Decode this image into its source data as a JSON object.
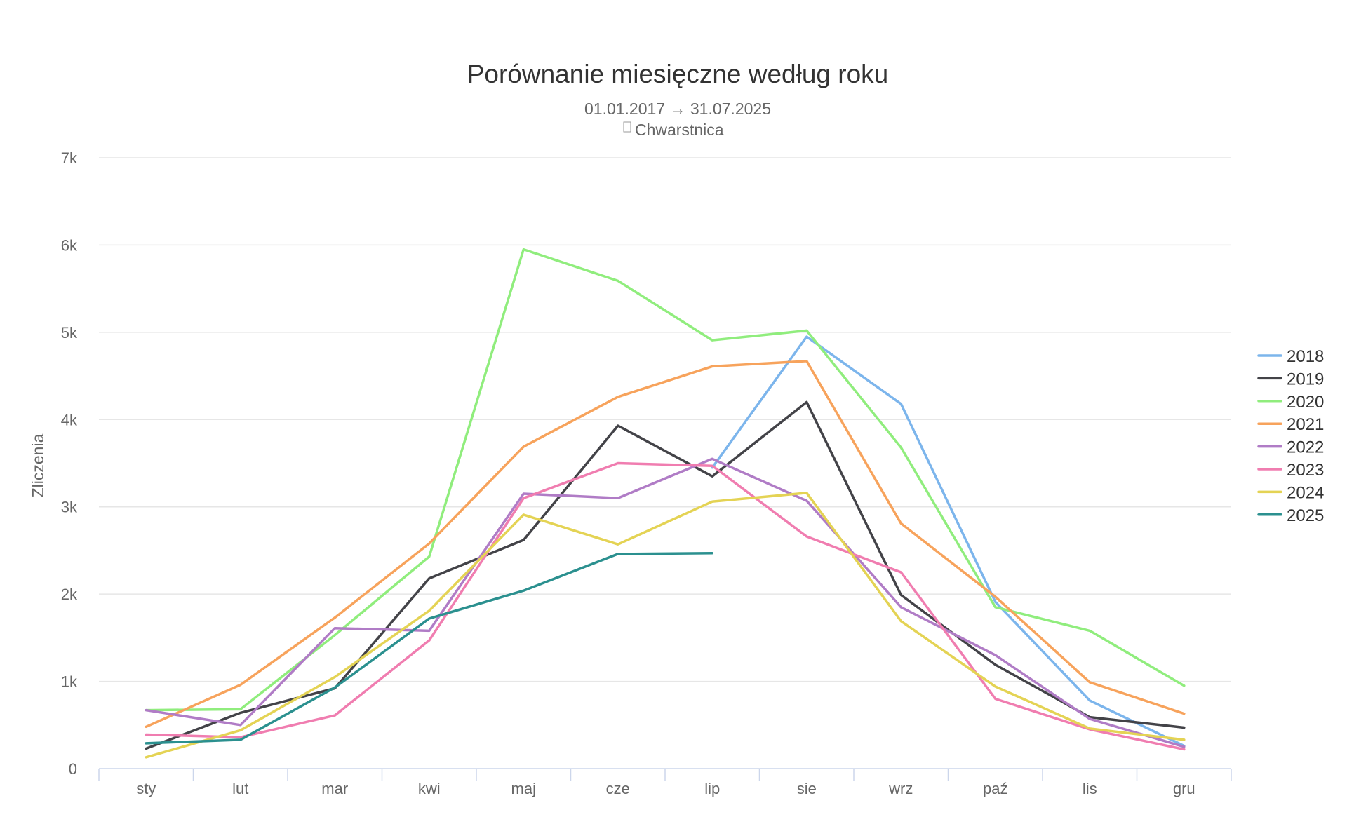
{
  "chart_data": {
    "type": "line",
    "title": "Porównanie miesięczne według roku",
    "subtitle": "01.01.2017 → 31.07.2025",
    "location_icon": "map-marker-icon",
    "location": "Chwarstnica",
    "xlabel": "",
    "ylabel": "Zliczenia",
    "ylim": [
      0,
      7000
    ],
    "yticks": [
      0,
      1000,
      2000,
      3000,
      4000,
      5000,
      6000,
      7000
    ],
    "ytick_labels": [
      "0",
      "1k",
      "2k",
      "3k",
      "4k",
      "5k",
      "6k",
      "7k"
    ],
    "categories": [
      "sty",
      "lut",
      "mar",
      "kwi",
      "maj",
      "cze",
      "lip",
      "sie",
      "wrz",
      "paź",
      "lis",
      "gru"
    ],
    "grid": true,
    "legend_position": "right",
    "series": [
      {
        "name": "2018",
        "color": "#7cb5ec",
        "values": [
          null,
          null,
          null,
          null,
          null,
          null,
          3450,
          4950,
          4180,
          1910,
          780,
          260
        ]
      },
      {
        "name": "2019",
        "color": "#434348",
        "values": [
          230,
          640,
          920,
          2180,
          2620,
          3930,
          3350,
          4200,
          1990,
          1190,
          590,
          470
        ]
      },
      {
        "name": "2020",
        "color": "#90ed7d",
        "values": [
          670,
          680,
          1530,
          2430,
          5950,
          5590,
          4910,
          5020,
          3680,
          1850,
          1580,
          950
        ]
      },
      {
        "name": "2021",
        "color": "#f7a35c",
        "values": [
          480,
          960,
          1730,
          2580,
          3690,
          4260,
          4610,
          4670,
          2810,
          1970,
          990,
          630
        ]
      },
      {
        "name": "2022",
        "color": "#b07cc6",
        "values": [
          670,
          500,
          1610,
          1580,
          3150,
          3100,
          3550,
          3070,
          1850,
          1300,
          570,
          250
        ]
      },
      {
        "name": "2023",
        "color": "#f07db0",
        "values": [
          390,
          360,
          610,
          1470,
          3100,
          3500,
          3470,
          2660,
          2250,
          800,
          450,
          220
        ]
      },
      {
        "name": "2024",
        "color": "#e4d354",
        "values": [
          130,
          440,
          1050,
          1810,
          2910,
          2570,
          3060,
          3160,
          1690,
          940,
          460,
          330
        ]
      },
      {
        "name": "2025",
        "color": "#2b908f",
        "values": [
          290,
          330,
          930,
          1720,
          2040,
          2460,
          2470,
          null,
          null,
          null,
          null,
          null
        ]
      }
    ]
  }
}
